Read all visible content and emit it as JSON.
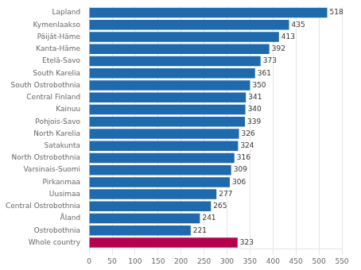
{
  "chart_data": {
    "type": "bar",
    "orientation": "horizontal",
    "categories": [
      "Whole country",
      "Ostrobothnia",
      "Åland",
      "Central Ostrobothnia",
      "Uusimaa",
      "Pirkanmaa",
      "Varsinais-Suomi",
      "North Ostrobothnia",
      "Satakunta",
      "North Karelia",
      "Pohjois-Savo",
      "Kainuu",
      "Central Finland",
      "South Ostrobothnia",
      "South Karelia",
      "Etelä-Savo",
      "Kanta-Häme",
      "Päijät-Häme",
      "Kymenlaakso",
      "Lapland"
    ],
    "values": [
      323,
      221,
      241,
      265,
      277,
      306,
      309,
      316,
      324,
      326,
      339,
      340,
      341,
      350,
      361,
      373,
      392,
      413,
      435,
      518
    ],
    "colors": [
      "#b5004e",
      "#1f6aad",
      "#1f6aad",
      "#1f6aad",
      "#1f6aad",
      "#1f6aad",
      "#1f6aad",
      "#1f6aad",
      "#1f6aad",
      "#1f6aad",
      "#1f6aad",
      "#1f6aad",
      "#1f6aad",
      "#1f6aad",
      "#1f6aad",
      "#1f6aad",
      "#1f6aad",
      "#1f6aad",
      "#1f6aad",
      "#1f6aad"
    ],
    "xlim": [
      0,
      550
    ],
    "xticks": [
      0,
      50,
      100,
      150,
      200,
      250,
      300,
      350,
      400,
      450,
      500,
      550
    ],
    "grid": true,
    "data_labels": true
  }
}
